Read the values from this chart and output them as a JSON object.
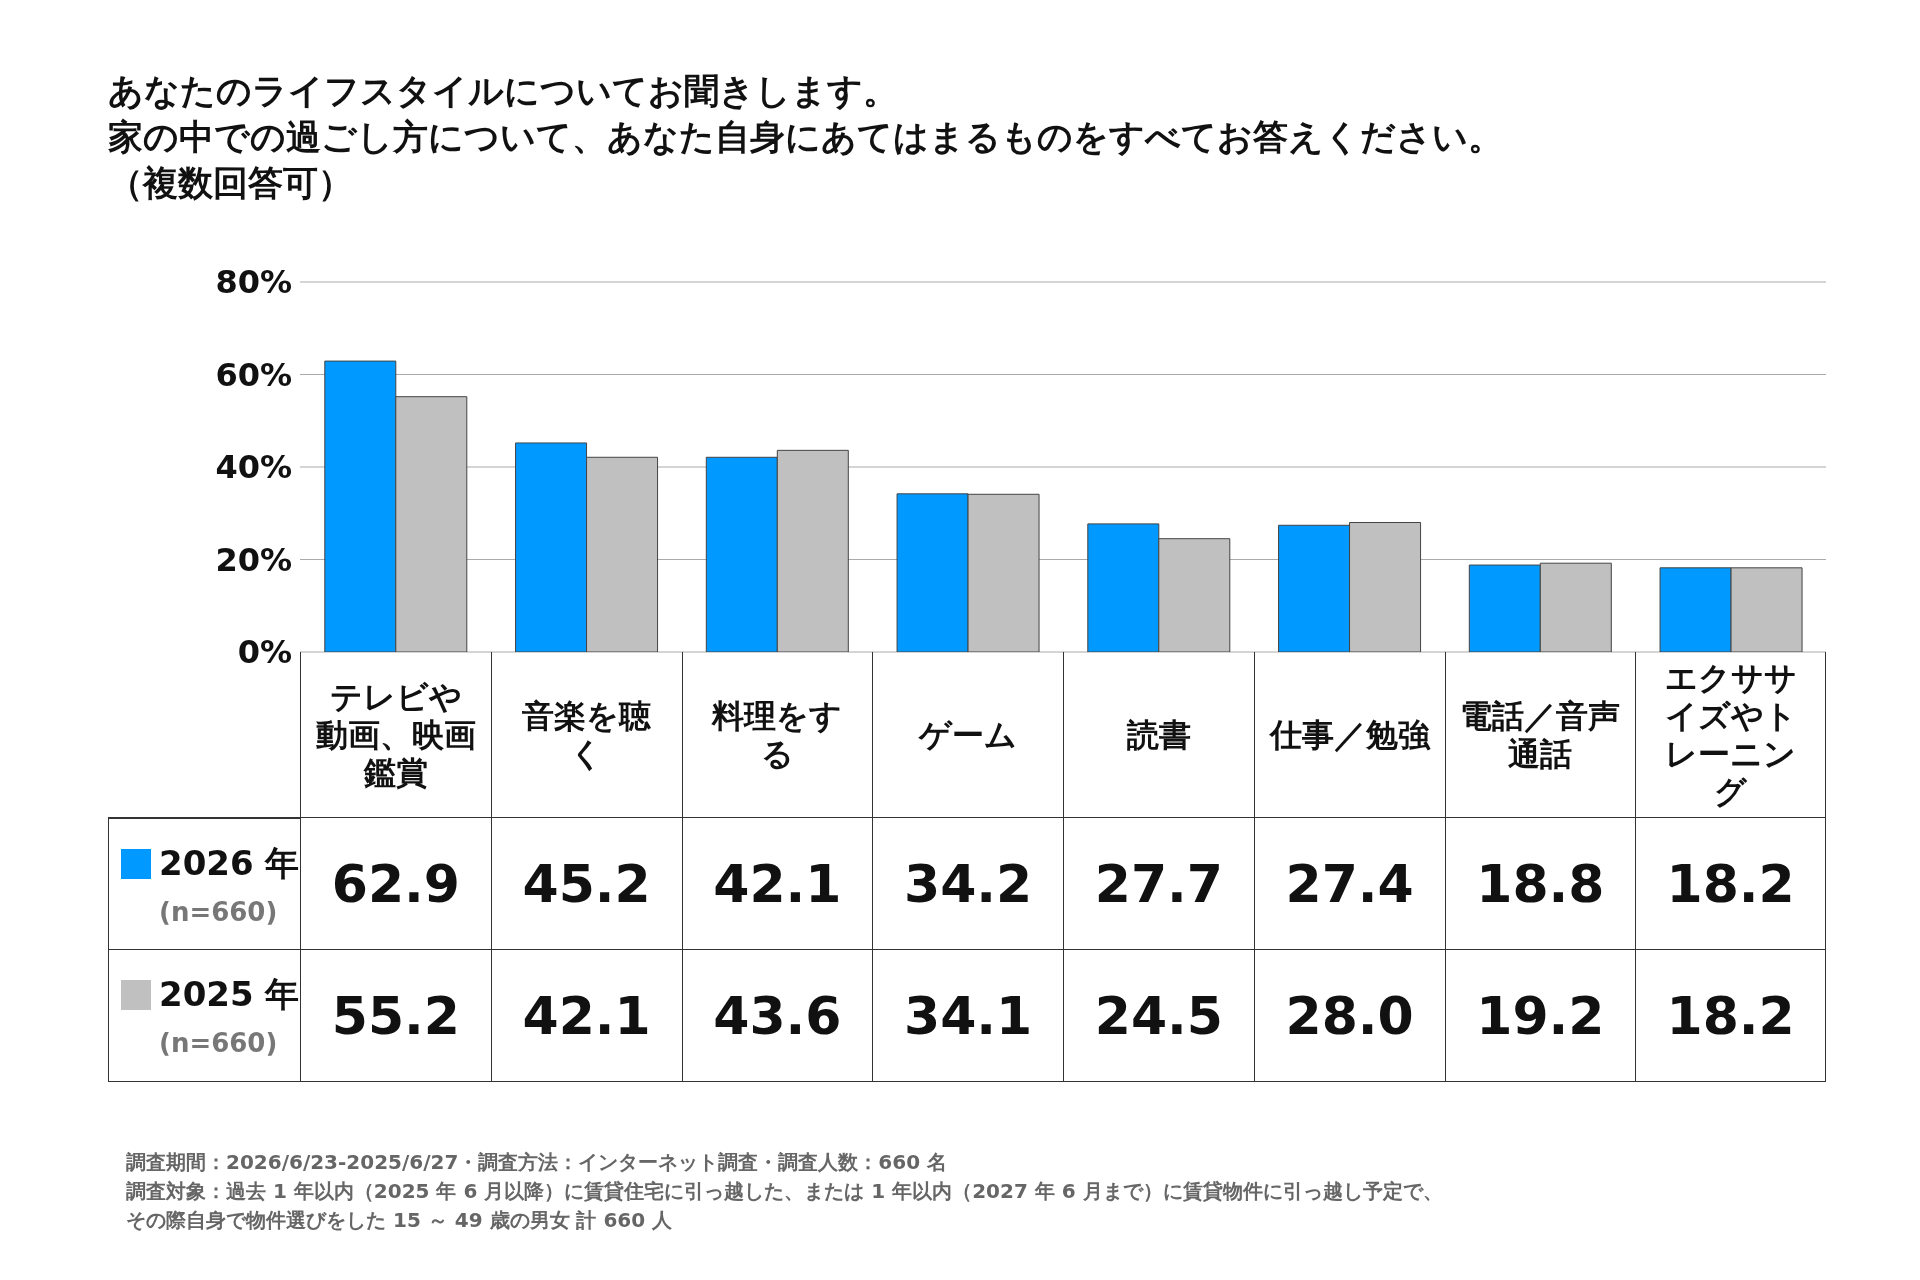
{
  "chart_data": {
    "type": "bar",
    "title": "あなたのライフスタイルについてお聞きします。",
    "subtitle": "家の中での過ごし方について、あなた自身にあてはまるものをすべてお答えください。",
    "categories": [
      "テレビや動画、映画鑑賞",
      "音楽を聴く",
      "料理をする",
      "ゲーム",
      "読書",
      "仕事／勉強",
      "電話／音声通話",
      "エクササイズやトレーニング"
    ],
    "series": [
      {
        "name": "2026 年",
        "color": "#0099ff",
        "values": [
          62.9,
          45.2,
          42.1,
          34.2,
          27.7,
          27.4,
          18.8,
          18.2
        ],
        "value_labels": [
          "62.9",
          "45.2",
          "42.1",
          "34.2",
          "27.7",
          "27.4",
          "18.8",
          "18.2"
        ]
      },
      {
        "name": "2025 年",
        "color": "#c0c0c0",
        "values": [
          55.2,
          42.1,
          43.6,
          34.1,
          24.5,
          28.0,
          19.2,
          18.2
        ],
        "value_labels": [
          "55.2",
          "42.1",
          "43.6",
          "34.1",
          "24.5",
          "28.0",
          "19.2",
          "18.2"
        ]
      }
    ],
    "ylim": [
      0,
      80
    ],
    "yticks": [
      {
        "value": 0,
        "label": "0%"
      },
      {
        "value": 20,
        "label": "20%"
      },
      {
        "value": 40,
        "label": "40%"
      },
      {
        "value": 60,
        "label": "60%"
      },
      {
        "value": 80,
        "label": "80%"
      }
    ],
    "grid": "y",
    "legend": "bottom left",
    "annotations": [
      "（複数回答可）",
      "(n=660)",
      "(n=660)",
      "調査期間：2026/6/23-2025/6/27・調査方法：インターネット調査・調査人数：660 名",
      "調査対象：過去 1 年以内（2025 年 6 月以降）に賃貸住宅に引っ越した、または 1 年以内（2027 年 6 月まで）に賃貸物件に引っ越し予定で、",
      "その際自身で物件選びをした 15 ～ 49 歳の男女 計 660 人"
    ]
  }
}
